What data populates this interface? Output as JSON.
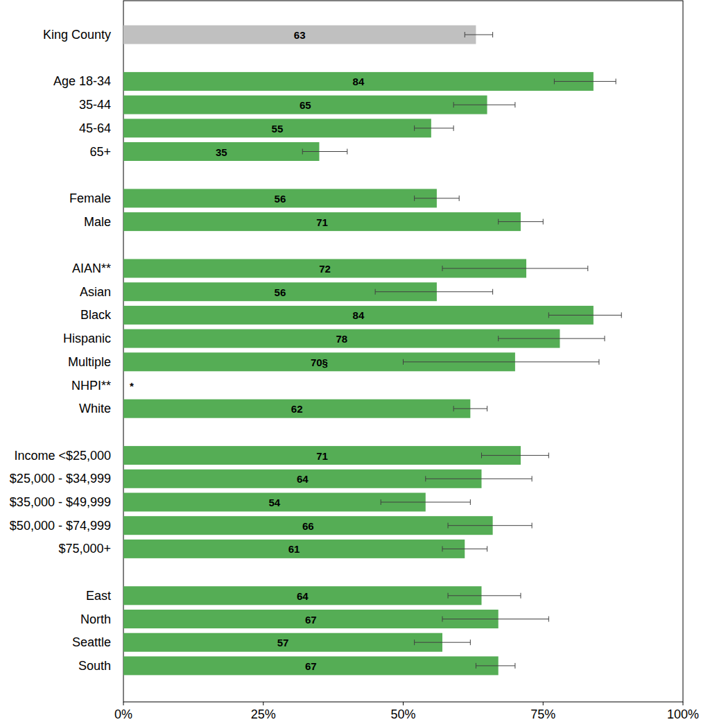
{
  "chart_data": {
    "type": "bar",
    "orientation": "horizontal",
    "data_labels": true,
    "grid": false,
    "categories": [
      "King County",
      "Age 18-34",
      "35-44",
      "45-64",
      "65+",
      "Female",
      "Male",
      "AIAN**",
      "Asian",
      "Black",
      "Hispanic",
      "Multiple",
      "NHPI**",
      "White",
      "Income <$25,000",
      "$25,000 - $34,999",
      "$35,000 - $49,999",
      "$50,000 - $74,999",
      "$75,000+",
      "East",
      "North",
      "Seattle",
      "South"
    ],
    "values": [
      63,
      84,
      65,
      55,
      35,
      56,
      71,
      72,
      56,
      84,
      78,
      70,
      null,
      62,
      71,
      64,
      54,
      66,
      61,
      64,
      67,
      57,
      67
    ],
    "value_labels": [
      "63",
      "84",
      "65",
      "55",
      "35",
      "56",
      "71",
      "72",
      "56",
      "84",
      "78",
      "70§",
      "*",
      "62",
      "71",
      "64",
      "54",
      "66",
      "61",
      "64",
      "67",
      "57",
      "67"
    ],
    "ci_low": [
      61,
      77,
      59,
      52,
      32,
      52,
      67,
      57,
      45,
      76,
      67,
      50,
      null,
      59,
      64,
      54,
      46,
      58,
      57,
      58,
      57,
      52,
      63
    ],
    "ci_high": [
      66,
      88,
      70,
      59,
      40,
      60,
      75,
      83,
      66,
      89,
      86,
      85,
      null,
      65,
      76,
      73,
      62,
      73,
      65,
      71,
      76,
      62,
      70
    ],
    "colors": [
      "#c0c0c0",
      "#55ad55",
      "#55ad55",
      "#55ad55",
      "#55ad55",
      "#55ad55",
      "#55ad55",
      "#55ad55",
      "#55ad55",
      "#55ad55",
      "#55ad55",
      "#55ad55",
      "#55ad55",
      "#55ad55",
      "#55ad55",
      "#55ad55",
      "#55ad55",
      "#55ad55",
      "#55ad55",
      "#55ad55",
      "#55ad55",
      "#55ad55",
      "#55ad55"
    ],
    "xlim": [
      0,
      100
    ],
    "xticks": [
      {
        "value": 0,
        "label": "0%"
      },
      {
        "value": 25,
        "label": "25%"
      },
      {
        "value": 50,
        "label": "50%"
      },
      {
        "value": 75,
        "label": "75%"
      },
      {
        "value": 100,
        "label": "100%"
      }
    ]
  }
}
